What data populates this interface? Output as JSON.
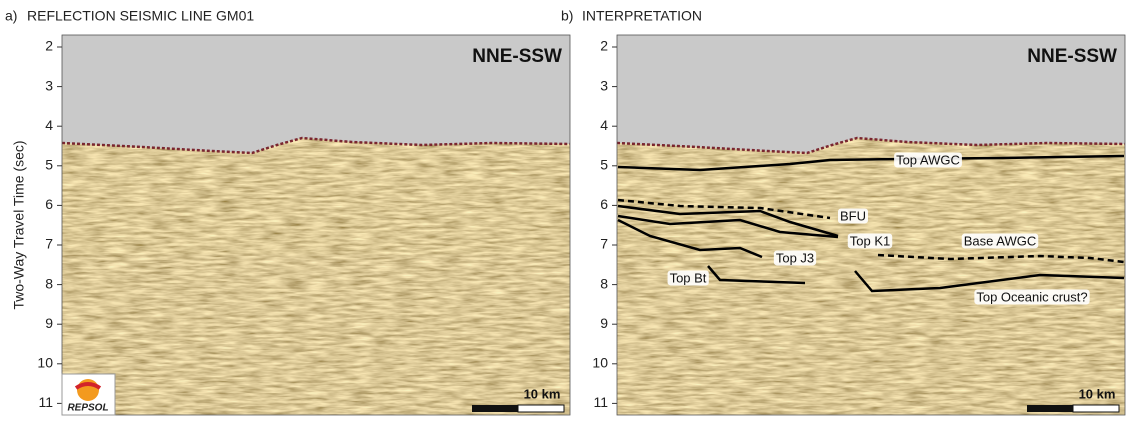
{
  "panels": [
    {
      "label": "a)",
      "title": "REFLECTION SEISMIC LINE GM01",
      "orientation": "NNE-SSW",
      "scale_bar": "10 km",
      "logo": "REPSOL"
    },
    {
      "label": "b)",
      "title": "INTERPRETATION",
      "orientation": "NNE-SSW",
      "scale_bar": "10 km",
      "horizons": [
        "Top AWGC",
        "BFU",
        "Top K1",
        "Base AWGC",
        "Top J3",
        "Top Bt",
        "Top Oceanic crust?"
      ]
    }
  ],
  "y_axis": {
    "label": "Two-Way Travel Time (sec)",
    "ticks": [
      2,
      3,
      4,
      5,
      6,
      7,
      8,
      9,
      10,
      11
    ]
  }
}
